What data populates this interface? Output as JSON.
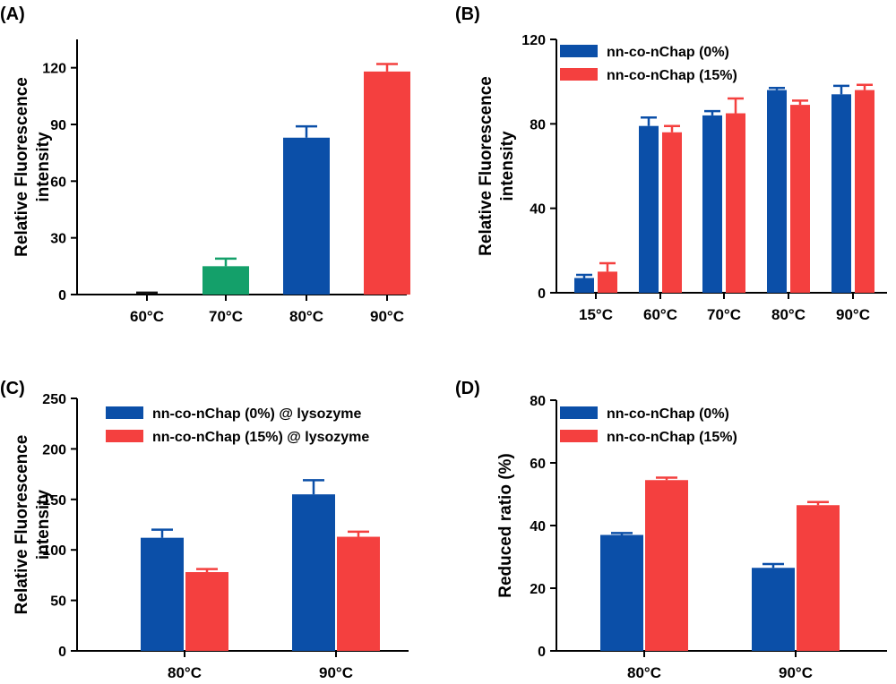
{
  "figure": {
    "panel_labels": [
      "(A)",
      "(B)",
      "(C)",
      "(D)"
    ]
  },
  "colors": {
    "blue": "#0b4fa8",
    "red": "#f4403f",
    "green": "#14a06a",
    "black": "#111111"
  },
  "chart_data": [
    {
      "panel": "(A)",
      "type": "bar",
      "categories": [
        "60°C",
        "70°C",
        "80°C",
        "90°C"
      ],
      "series": [
        {
          "values": [
            0,
            15,
            83,
            118
          ],
          "errors": [
            1,
            4,
            6,
            4
          ],
          "colors": [
            "#111111",
            "#14a06a",
            "#0b4fa8",
            "#f4403f"
          ]
        }
      ],
      "ylabel": [
        "Relative Fluorescence",
        "intensity"
      ],
      "ylim": [
        0,
        135
      ],
      "yticks": [
        0,
        30,
        60,
        90,
        120
      ],
      "legend": null
    },
    {
      "panel": "(B)",
      "type": "bar",
      "categories": [
        "15°C",
        "60°C",
        "70°C",
        "80°C",
        "90°C"
      ],
      "series": [
        {
          "name": "nn-co-nChap (0%)",
          "color": "#0b4fa8",
          "values": [
            7,
            79,
            84,
            96,
            94
          ],
          "errors": [
            1.5,
            4,
            2,
            1,
            4
          ]
        },
        {
          "name": "nn-co-nChap (15%)",
          "color": "#f4403f",
          "values": [
            10,
            76,
            85,
            89,
            96
          ],
          "errors": [
            4,
            3,
            7,
            2,
            2.5
          ]
        }
      ],
      "ylabel": [
        "Relative Fluorescence",
        "intensity"
      ],
      "ylim": [
        0,
        120
      ],
      "yticks": [
        0,
        40,
        80,
        120
      ],
      "legend": "top-left"
    },
    {
      "panel": "(C)",
      "type": "bar",
      "categories": [
        "80°C",
        "90°C"
      ],
      "series": [
        {
          "name": "nn-co-nChap (0%) @ lysozyme",
          "color": "#0b4fa8",
          "values": [
            112,
            155
          ],
          "errors": [
            8,
            14
          ]
        },
        {
          "name": "nn-co-nChap (15%) @ lysozyme",
          "color": "#f4403f",
          "values": [
            78,
            113
          ],
          "errors": [
            3,
            5
          ]
        }
      ],
      "ylabel": [
        "Relative Fluorescence",
        "intensity"
      ],
      "ylim": [
        0,
        250
      ],
      "yticks": [
        0,
        50,
        100,
        150,
        200,
        250
      ],
      "legend": "top-left"
    },
    {
      "panel": "(D)",
      "type": "bar",
      "categories": [
        "80°C",
        "90°C"
      ],
      "series": [
        {
          "name": "nn-co-nChap (0%)",
          "color": "#0b4fa8",
          "values": [
            37,
            26.5
          ],
          "errors": [
            0.6,
            1.2
          ]
        },
        {
          "name": "nn-co-nChap (15%)",
          "color": "#f4403f",
          "values": [
            54.5,
            46.5
          ],
          "errors": [
            0.8,
            1
          ]
        }
      ],
      "ylabel": [
        "Reduced ratio (%)"
      ],
      "ylim": [
        0,
        80
      ],
      "yticks": [
        0,
        20,
        40,
        60,
        80
      ],
      "legend": "top-left"
    }
  ]
}
